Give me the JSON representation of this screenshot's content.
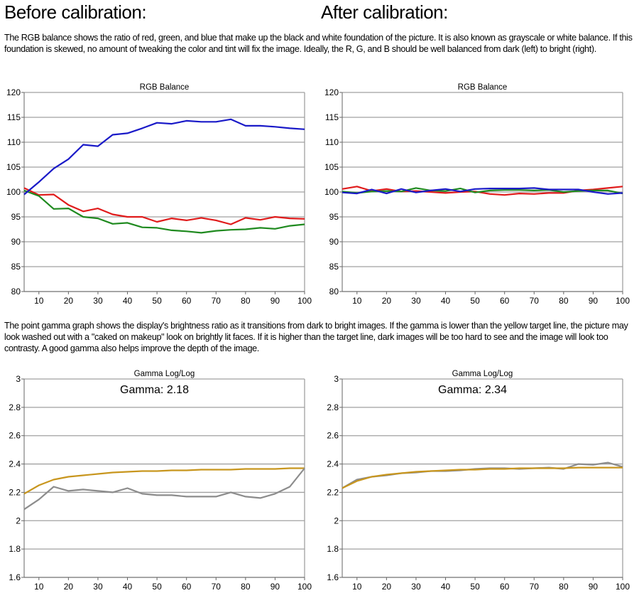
{
  "headings": {
    "before": "Before calibration:",
    "after": "After calibration:"
  },
  "paragraphs": {
    "rgb": "The RGB balance shows the ratio of red, green, and blue that make up the black and white foundation of the picture. It is also known as grayscale or white balance. If this foundation is skewed, no amount of tweaking the color and tint will fix the image. Ideally, the R, G, and B should be well balanced from dark (left) to bright (right).",
    "gamma": "The point gamma graph shows the display's brightness ratio as it transitions from dark to bright images. If the gamma is lower than the yellow target line, the picture may look washed out with a \"caked on makeup\" look on brightly lit faces. If it is higher than the target line, dark images will be too hard to see and the image will look too contrasty. A good gamma also helps improve the depth of the image."
  },
  "chart_data": [
    {
      "id": "rgb-before",
      "type": "line",
      "title": "RGB Balance",
      "annotation": "",
      "x": [
        5,
        10,
        15,
        20,
        25,
        30,
        35,
        40,
        45,
        50,
        55,
        60,
        65,
        70,
        75,
        80,
        85,
        90,
        95,
        100
      ],
      "xlim": [
        5,
        100
      ],
      "xticks": [
        10,
        20,
        30,
        40,
        50,
        60,
        70,
        80,
        90,
        100
      ],
      "ylim": [
        80,
        120
      ],
      "yticks": [
        80,
        85,
        90,
        95,
        100,
        105,
        110,
        115,
        120
      ],
      "grid": true,
      "series": [
        {
          "name": "Red",
          "color": "#e01b1b",
          "values": [
            100.8,
            99.4,
            99.5,
            97.4,
            96.1,
            96.7,
            95.5,
            95,
            95,
            94,
            94.7,
            94.3,
            94.8,
            94.3,
            93.5,
            94.8,
            94.4,
            95,
            94.7,
            94.6
          ]
        },
        {
          "name": "Green",
          "color": "#1f8a1f",
          "values": [
            100.3,
            99.2,
            96.6,
            96.7,
            95,
            94.7,
            93.6,
            93.8,
            92.9,
            92.8,
            92.3,
            92.1,
            91.8,
            92.2,
            92.4,
            92.5,
            92.8,
            92.6,
            93.2,
            93.5
          ]
        },
        {
          "name": "Blue",
          "color": "#1a1ac8",
          "values": [
            99.5,
            102,
            104.7,
            106.6,
            109.5,
            109.2,
            111.5,
            111.8,
            112.8,
            113.9,
            113.7,
            114.3,
            114.1,
            114.1,
            114.6,
            113.3,
            113.3,
            113.1,
            112.8,
            112.6
          ]
        }
      ]
    },
    {
      "id": "rgb-after",
      "type": "line",
      "title": "RGB Balance",
      "annotation": "",
      "x": [
        5,
        10,
        15,
        20,
        25,
        30,
        35,
        40,
        45,
        50,
        55,
        60,
        65,
        70,
        75,
        80,
        85,
        90,
        95,
        100
      ],
      "xlim": [
        5,
        100
      ],
      "xticks": [
        10,
        20,
        30,
        40,
        50,
        60,
        70,
        80,
        90,
        100
      ],
      "ylim": [
        80,
        120
      ],
      "yticks": [
        80,
        85,
        90,
        95,
        100,
        105,
        110,
        115,
        120
      ],
      "grid": true,
      "series": [
        {
          "name": "Red",
          "color": "#e01b1b",
          "values": [
            100.6,
            101.1,
            100.2,
            100.6,
            100.1,
            100.2,
            100,
            99.8,
            100,
            100.1,
            99.6,
            99.4,
            99.7,
            99.6,
            99.8,
            99.8,
            100.3,
            100.5,
            100.8,
            101.1
          ]
        },
        {
          "name": "Green",
          "color": "#1f8a1f",
          "values": [
            100.1,
            99.8,
            100.1,
            100.2,
            100.1,
            100.8,
            100.3,
            100.2,
            100.7,
            99.9,
            100.3,
            100.4,
            100.4,
            100.3,
            100.4,
            100,
            100.2,
            100.3,
            100.3,
            99.7
          ]
        },
        {
          "name": "Blue",
          "color": "#1a1ac8",
          "values": [
            99.9,
            99.7,
            100.5,
            99.7,
            100.6,
            99.9,
            100.3,
            100.6,
            100.1,
            100.6,
            100.7,
            100.7,
            100.7,
            100.8,
            100.5,
            100.5,
            100.5,
            100,
            99.6,
            99.8
          ]
        }
      ]
    },
    {
      "id": "gamma-before",
      "type": "line",
      "title": "Gamma Log/Log",
      "annotation": "Gamma: 2.18",
      "x": [
        5,
        10,
        15,
        20,
        25,
        30,
        35,
        40,
        45,
        50,
        55,
        60,
        65,
        70,
        75,
        80,
        85,
        90,
        95,
        100
      ],
      "xlim": [
        5,
        100
      ],
      "xticks": [
        10,
        20,
        30,
        40,
        50,
        60,
        70,
        80,
        90,
        100
      ],
      "ylim": [
        1.6,
        3
      ],
      "yticks": [
        1.6,
        1.8,
        2,
        2.2,
        2.4,
        2.6,
        2.8,
        3
      ],
      "grid": true,
      "series": [
        {
          "name": "Target",
          "color": "#c8961e",
          "values": [
            2.19,
            2.25,
            2.29,
            2.31,
            2.32,
            2.33,
            2.34,
            2.345,
            2.35,
            2.35,
            2.355,
            2.355,
            2.36,
            2.36,
            2.36,
            2.365,
            2.365,
            2.365,
            2.37,
            2.37
          ]
        },
        {
          "name": "Measured",
          "color": "#8c8c8c",
          "values": [
            2.08,
            2.15,
            2.24,
            2.21,
            2.22,
            2.21,
            2.2,
            2.23,
            2.19,
            2.18,
            2.18,
            2.17,
            2.17,
            2.17,
            2.2,
            2.17,
            2.16,
            2.19,
            2.24,
            2.37
          ]
        }
      ]
    },
    {
      "id": "gamma-after",
      "type": "line",
      "title": "Gamma Log/Log",
      "annotation": "Gamma: 2.34",
      "x": [
        5,
        10,
        15,
        20,
        25,
        30,
        35,
        40,
        45,
        50,
        55,
        60,
        65,
        70,
        75,
        80,
        85,
        90,
        95,
        100
      ],
      "xlim": [
        5,
        100
      ],
      "xticks": [
        10,
        20,
        30,
        40,
        50,
        60,
        70,
        80,
        90,
        100
      ],
      "ylim": [
        1.6,
        3
      ],
      "yticks": [
        1.6,
        1.8,
        2,
        2.2,
        2.4,
        2.6,
        2.8,
        3
      ],
      "grid": true,
      "series": [
        {
          "name": "Measured",
          "color": "#8c8c8c",
          "values": [
            2.23,
            2.29,
            2.31,
            2.32,
            2.335,
            2.34,
            2.35,
            2.35,
            2.355,
            2.365,
            2.37,
            2.37,
            2.365,
            2.37,
            2.375,
            2.365,
            2.4,
            2.395,
            2.41,
            2.38
          ]
        },
        {
          "name": "Target",
          "color": "#c8961e",
          "values": [
            2.23,
            2.28,
            2.31,
            2.325,
            2.335,
            2.345,
            2.35,
            2.355,
            2.36,
            2.36,
            2.365,
            2.365,
            2.37,
            2.37,
            2.37,
            2.37,
            2.375,
            2.375,
            2.375,
            2.375
          ]
        }
      ]
    }
  ]
}
